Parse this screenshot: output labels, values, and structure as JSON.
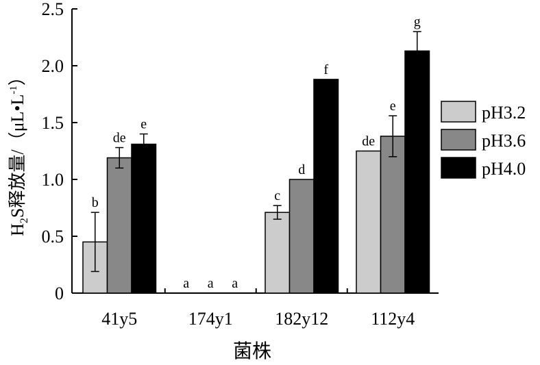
{
  "chart_data": {
    "type": "bar",
    "categories": [
      "41y5",
      "174y1",
      "182y12",
      "112y4"
    ],
    "series": [
      {
        "name": "pH3.2",
        "color": "#cccccc",
        "values": [
          0.45,
          0.0,
          0.71,
          1.25
        ],
        "errors": [
          0.26,
          0.0,
          0.06,
          0.0
        ],
        "letters": [
          "b",
          "a",
          "c",
          "de"
        ]
      },
      {
        "name": "pH3.6",
        "color": "#888888",
        "values": [
          1.19,
          0.0,
          1.0,
          1.38
        ],
        "errors": [
          0.09,
          0.0,
          0.0,
          0.18
        ],
        "letters": [
          "de",
          "a",
          "d",
          "e"
        ]
      },
      {
        "name": "pH4.0",
        "color": "#000000",
        "values": [
          1.31,
          0.0,
          1.88,
          2.13
        ],
        "errors": [
          0.09,
          0.0,
          0.0,
          0.17
        ],
        "letters": [
          "e",
          "a",
          "f",
          "g"
        ]
      }
    ],
    "ylabel_main": "H",
    "ylabel_sub": "2",
    "ylabel_rest": "S释放量/（μL•L",
    "ylabel_sup": "-1",
    "ylabel_close": "）",
    "xlabel": "菌株",
    "ylim": [
      0,
      2.5
    ],
    "yticks": [
      0,
      0.5,
      1.0,
      1.5,
      2.0,
      2.5
    ],
    "ytick_labels": [
      "0",
      "0.5",
      "1.0",
      "1.5",
      "2.0",
      "2.5"
    ],
    "grid": false,
    "legend_position": "right"
  }
}
